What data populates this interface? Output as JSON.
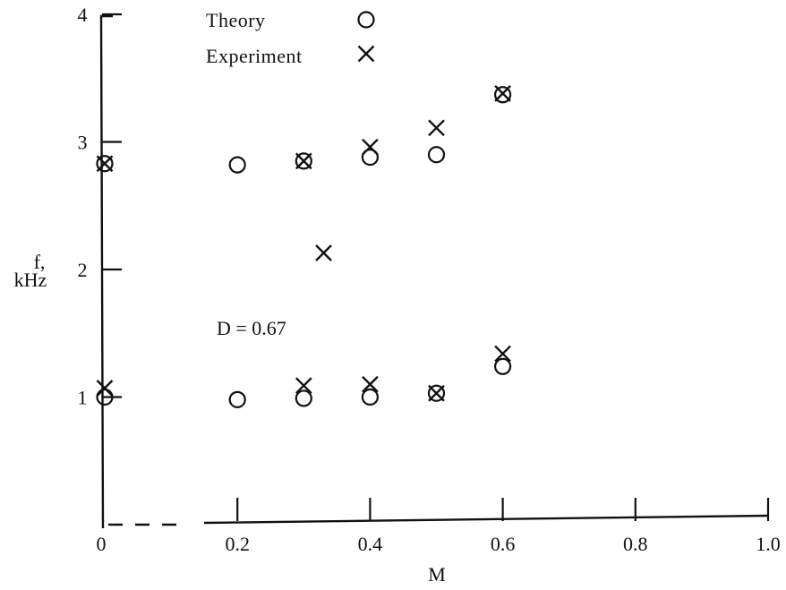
{
  "chart_data": {
    "type": "scatter",
    "xlabel": "M",
    "ylabel": [
      "f,",
      "kHz"
    ],
    "xlim": [
      0,
      1.0
    ],
    "ylim": [
      0,
      4
    ],
    "x_ticks": [
      {
        "value": 0,
        "label": "0"
      },
      {
        "value": 0.2,
        "label": "0.2"
      },
      {
        "value": 0.4,
        "label": "0.4"
      },
      {
        "value": 0.6,
        "label": "0.6"
      },
      {
        "value": 0.8,
        "label": "0.8"
      },
      {
        "value": 1.0,
        "label": "1.0"
      }
    ],
    "y_ticks": [
      {
        "value": 1,
        "label": "1"
      },
      {
        "value": 2,
        "label": "2"
      },
      {
        "value": 3,
        "label": "3"
      },
      {
        "value": 4,
        "label": "4"
      }
    ],
    "grid": false,
    "legend_position": "top",
    "annotation": "D = 0.67",
    "series": [
      {
        "name": "Theory",
        "marker": "circle",
        "points": [
          {
            "x": 0.0,
            "y": 2.83
          },
          {
            "x": 0.2,
            "y": 2.82
          },
          {
            "x": 0.3,
            "y": 2.85
          },
          {
            "x": 0.4,
            "y": 2.88
          },
          {
            "x": 0.5,
            "y": 2.9
          },
          {
            "x": 0.6,
            "y": 3.37
          },
          {
            "x": 0.0,
            "y": 1.0
          },
          {
            "x": 0.2,
            "y": 0.98
          },
          {
            "x": 0.3,
            "y": 0.99
          },
          {
            "x": 0.4,
            "y": 1.0
          },
          {
            "x": 0.5,
            "y": 1.03
          },
          {
            "x": 0.6,
            "y": 1.24
          }
        ]
      },
      {
        "name": "Experiment",
        "marker": "cross",
        "points": [
          {
            "x": 0.0,
            "y": 2.83
          },
          {
            "x": 0.3,
            "y": 2.85
          },
          {
            "x": 0.4,
            "y": 2.96
          },
          {
            "x": 0.5,
            "y": 3.11
          },
          {
            "x": 0.6,
            "y": 3.38
          },
          {
            "x": 0.33,
            "y": 2.13
          },
          {
            "x": 0.0,
            "y": 1.07
          },
          {
            "x": 0.3,
            "y": 1.09
          },
          {
            "x": 0.4,
            "y": 1.1
          },
          {
            "x": 0.5,
            "y": 1.03
          },
          {
            "x": 0.6,
            "y": 1.34
          }
        ]
      }
    ]
  }
}
